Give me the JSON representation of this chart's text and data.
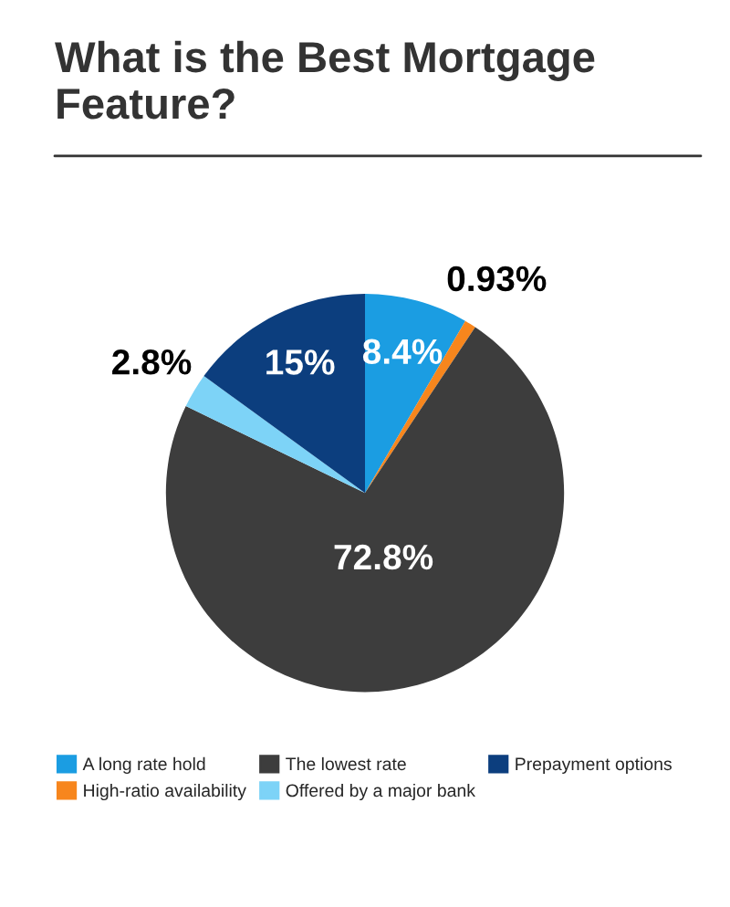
{
  "chart_data": {
    "type": "pie",
    "title": "What is the Best Mortgage Feature?",
    "categories": [
      "A long rate hold",
      "High-ratio availability",
      "The lowest rate",
      "Offered by a major bank",
      "Prepayment options"
    ],
    "values": [
      8.4,
      0.93,
      72.8,
      2.8,
      15
    ],
    "value_labels": [
      "8.4%",
      "0.93%",
      "72.8%",
      "2.8%",
      "15%"
    ],
    "colors": [
      "#1b9de2",
      "#f7861d",
      "#3d3d3d",
      "#7dd3f7",
      "#0c3e7e"
    ],
    "legend": "bottom"
  }
}
